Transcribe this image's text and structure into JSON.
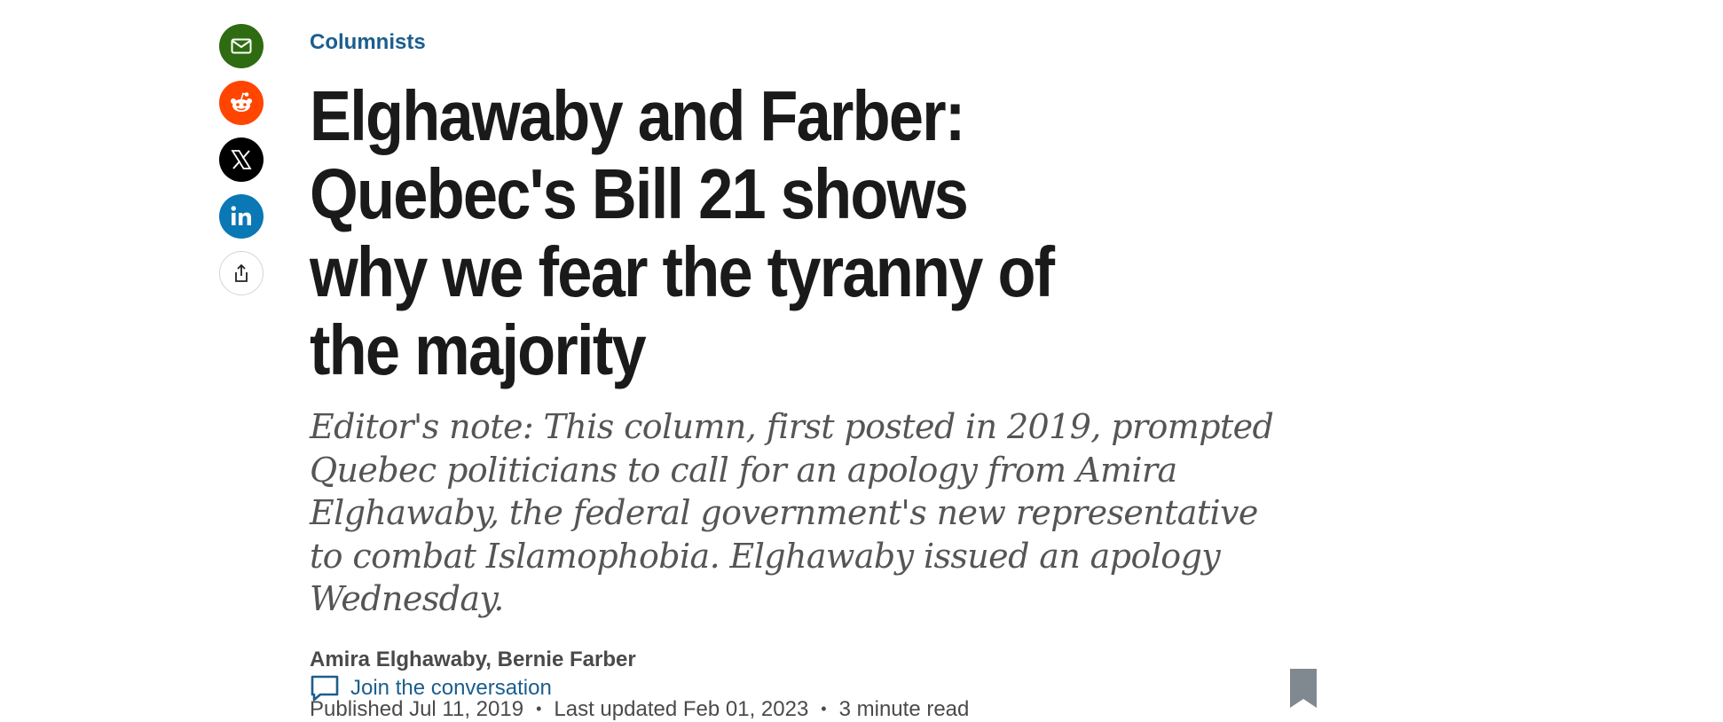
{
  "share": {
    "items": [
      {
        "id": "email",
        "icon": "email-icon",
        "color": "#2e6b11"
      },
      {
        "id": "reddit",
        "icon": "reddit-icon",
        "color": "#ff4500"
      },
      {
        "id": "x",
        "icon": "x-icon",
        "color": "#000000"
      },
      {
        "id": "linkedin",
        "icon": "linkedin-icon",
        "color": "#0a78b5"
      },
      {
        "id": "share",
        "icon": "share-icon",
        "color": "#ffffff"
      }
    ]
  },
  "article": {
    "category": "Columnists",
    "headline": "Elghawaby and Farber: Quebec's Bill 21 shows why we fear the tyranny of the majority",
    "deck": "Editor's note: This column, first posted in 2019, prompted Quebec politicians to call for an apology from Amira Elghawaby, the federal government's new representative to combat Islamophobia. Elghawaby issued an apology Wednesday.",
    "authors": {
      "first": "Amira Elghawaby",
      "separator": ", ",
      "second": "Bernie Farber"
    },
    "meta": {
      "published": "Published Jul 11, 2019",
      "updated": "Last updated Feb 01, 2023",
      "read_time": "3 minute read",
      "separator": "•"
    },
    "conversation_label": "Join the conversation",
    "bookmark_icon": "bookmark-icon"
  },
  "colors": {
    "accent": "#1b5e8e",
    "headline": "#1a1a1a",
    "deck": "#555555",
    "meta": "#4a4a4a"
  }
}
